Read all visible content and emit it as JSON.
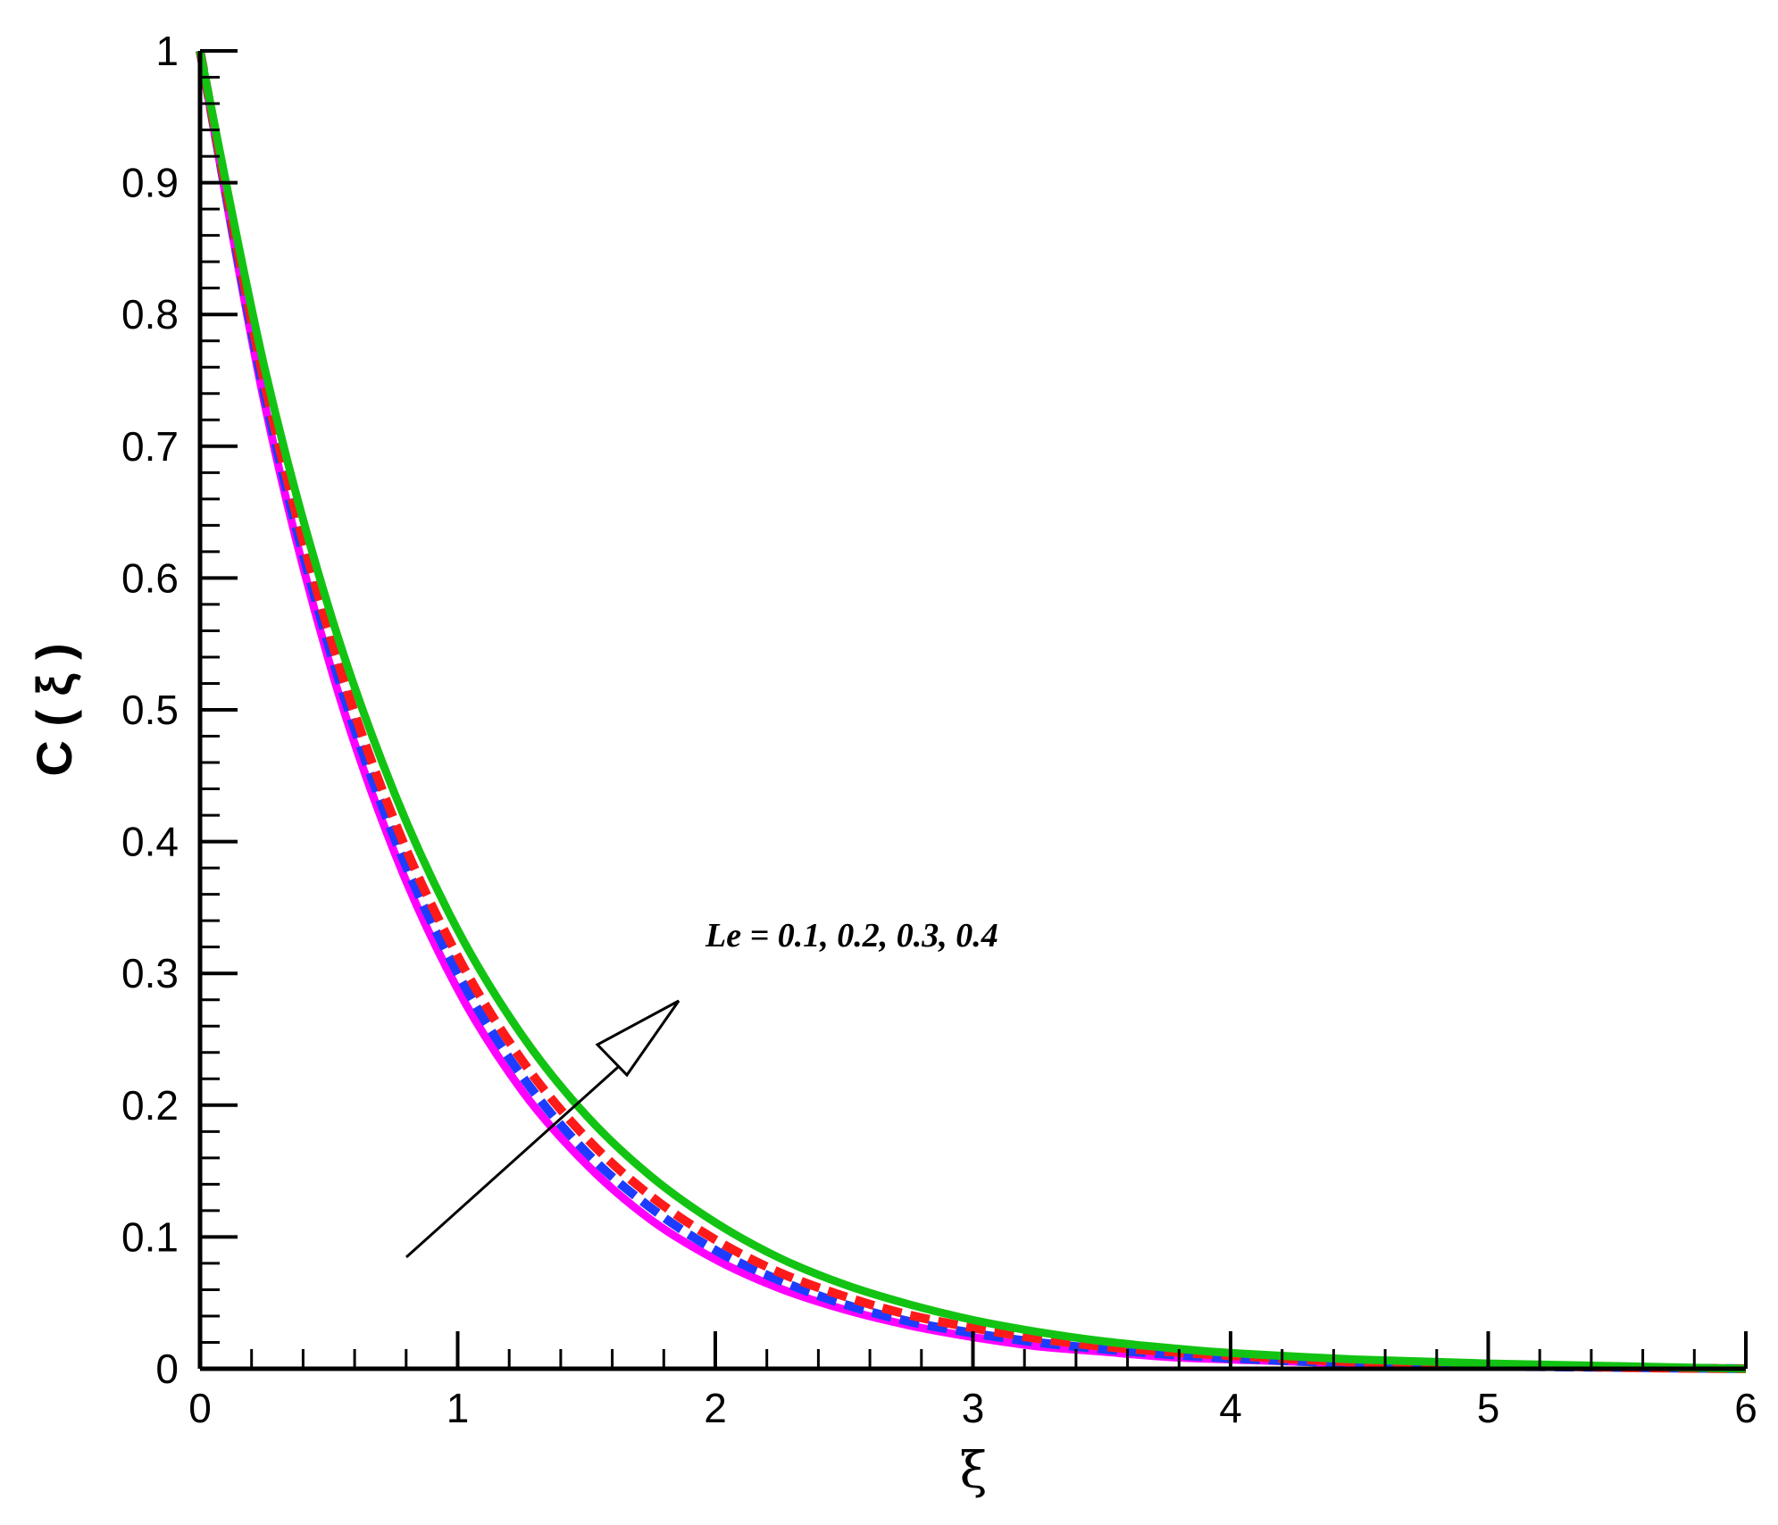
{
  "chart_data": {
    "type": "line",
    "xlabel": "ξ",
    "ylabel": "C ( ξ )",
    "xlim": [
      0,
      6
    ],
    "ylim": [
      0,
      1
    ],
    "xticks": [
      "0",
      "1",
      "2",
      "3",
      "4",
      "5",
      "6"
    ],
    "yticks": [
      "0",
      "0.1",
      "0.2",
      "0.3",
      "0.4",
      "0.5",
      "0.6",
      "0.7",
      "0.8",
      "0.9",
      "1"
    ],
    "grid": false,
    "annotation": "Le = 0.1, 0.2, 0.3, 0.4",
    "x": [
      0,
      0.25,
      0.5,
      0.75,
      1,
      1.25,
      1.5,
      1.75,
      2,
      2.25,
      2.5,
      2.75,
      3,
      3.25,
      3.5,
      3.75,
      4,
      4.5,
      5,
      5.5,
      6
    ],
    "series": [
      {
        "color": "#ff00ff",
        "style": "solid",
        "values": [
          1.0,
          0.733,
          0.537,
          0.394,
          0.288,
          0.211,
          0.155,
          0.113,
          0.083,
          0.061,
          0.045,
          0.033,
          0.024,
          0.017,
          0.013,
          0.009,
          0.007,
          0.004,
          0.002,
          0.001,
          0.0
        ]
      },
      {
        "color": "#1e3cff",
        "style": "dashed",
        "values": [
          1.0,
          0.74,
          0.548,
          0.405,
          0.3,
          0.222,
          0.164,
          0.122,
          0.09,
          0.067,
          0.049,
          0.036,
          0.027,
          0.02,
          0.015,
          0.011,
          0.008,
          0.004,
          0.002,
          0.001,
          0.0
        ]
      },
      {
        "color": "#ff1a1a",
        "style": "dashed",
        "values": [
          1.0,
          0.748,
          0.559,
          0.418,
          0.313,
          0.234,
          0.175,
          0.131,
          0.098,
          0.073,
          0.055,
          0.041,
          0.031,
          0.023,
          0.017,
          0.013,
          0.01,
          0.005,
          0.003,
          0.001,
          0.0
        ]
      },
      {
        "color": "#13c313",
        "style": "solid",
        "values": [
          1.0,
          0.76,
          0.577,
          0.439,
          0.333,
          0.253,
          0.192,
          0.146,
          0.111,
          0.084,
          0.064,
          0.049,
          0.037,
          0.028,
          0.021,
          0.016,
          0.012,
          0.007,
          0.004,
          0.002,
          0.0
        ]
      }
    ]
  }
}
